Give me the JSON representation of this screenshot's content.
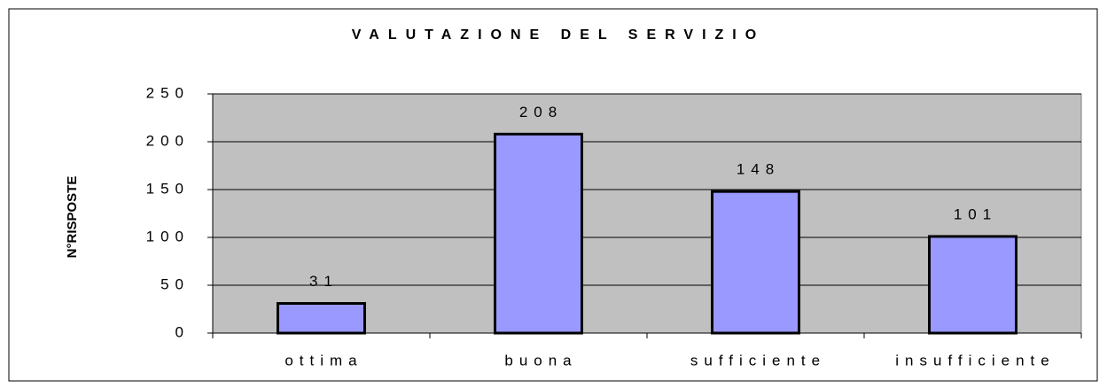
{
  "chart_data": {
    "type": "bar",
    "title": "VALUTAZIONE DEL SERVIZIO",
    "ylabel": "N°RISPOSTE",
    "categories": [
      "ottima",
      "buona",
      "sufficiente",
      "insufficiente"
    ],
    "values": [
      31,
      208,
      148,
      101
    ],
    "color": "#9999ff",
    "ylim": [
      0,
      250
    ],
    "yticks": [
      0,
      50,
      100,
      150,
      200,
      250
    ],
    "grid": true,
    "data_labels": true
  }
}
